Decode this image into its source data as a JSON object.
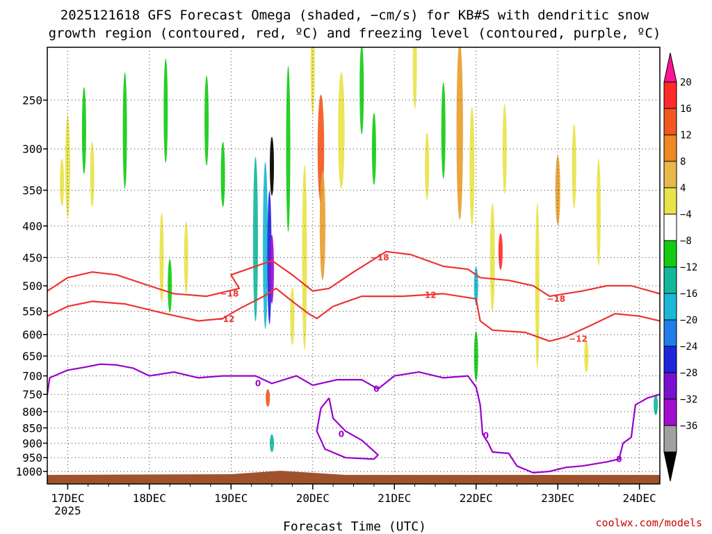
{
  "chart_data": {
    "type": "heatmap",
    "title": [
      "2025121618 GFS Forecast Omega (shaded, −cm/s) for KB#S with dendritic snow",
      "growth region (contoured, red, ºC) and freezing level (contoured, purple, ºC)"
    ],
    "xlabel": "Forecast Time (UTC)",
    "credit": "coolwx.com/models",
    "y_ticks": [
      "250",
      "300",
      "350",
      "400",
      "450",
      "500",
      "550",
      "600",
      "650",
      "700",
      "750",
      "800",
      "850",
      "900",
      "950",
      "1000"
    ],
    "y_levels_hpa": [
      250,
      300,
      350,
      400,
      450,
      500,
      550,
      600,
      650,
      700,
      750,
      800,
      850,
      900,
      950,
      1000
    ],
    "x_ticks": [
      "17DEC",
      "18DEC",
      "19DEC",
      "20DEC",
      "21DEC",
      "22DEC",
      "23DEC",
      "24DEC"
    ],
    "x_year": "2025",
    "x_range_days": [
      16.75,
      24.25
    ],
    "colorbar": {
      "tick_labels": [
        "20",
        "16",
        "12",
        "8",
        "4",
        "−4",
        "−8",
        "−12",
        "−16",
        "−20",
        "−24",
        "−28",
        "−32",
        "−36"
      ],
      "colors": [
        "#ff1493",
        "#ff2a2a",
        "#f2581f",
        "#ee8a22",
        "#e8b84a",
        "#e9e34a",
        "#ffffff",
        "#13cc13",
        "#13b89c",
        "#19b8d6",
        "#1f7ee8",
        "#1f24dd",
        "#7810d0",
        "#a00ed0",
        "#a0a0a0",
        "#000000"
      ]
    },
    "omega_blobs": [
      {
        "t": 17.0,
        "p": 320,
        "dt": 0.06,
        "dp": 120,
        "v": 5
      },
      {
        "t": 16.93,
        "p": 340,
        "dt": 0.04,
        "dp": 60,
        "v": 7
      },
      {
        "t": 17.2,
        "p": 280,
        "dt": 0.05,
        "dp": 90,
        "v": -5
      },
      {
        "t": 17.3,
        "p": 330,
        "dt": 0.04,
        "dp": 80,
        "v": 5
      },
      {
        "t": 17.7,
        "p": 280,
        "dt": 0.05,
        "dp": 120,
        "v": -5
      },
      {
        "t": 18.2,
        "p": 260,
        "dt": 0.05,
        "dp": 100,
        "v": -5
      },
      {
        "t": 18.15,
        "p": 450,
        "dt": 0.04,
        "dp": 150,
        "v": 5
      },
      {
        "t": 18.25,
        "p": 500,
        "dt": 0.05,
        "dp": 100,
        "v": -5
      },
      {
        "t": 18.45,
        "p": 450,
        "dt": 0.04,
        "dp": 120,
        "v": 5
      },
      {
        "t": 18.7,
        "p": 270,
        "dt": 0.04,
        "dp": 90,
        "v": -5
      },
      {
        "t": 18.9,
        "p": 330,
        "dt": 0.04,
        "dp": 80,
        "v": -5
      },
      {
        "t": 19.3,
        "p": 420,
        "dt": 0.06,
        "dp": 250,
        "v": -8
      },
      {
        "t": 19.42,
        "p": 430,
        "dt": 0.06,
        "dp": 260,
        "v": -12
      },
      {
        "t": 19.47,
        "p": 450,
        "dt": 0.05,
        "dp": 220,
        "v": -20
      },
      {
        "t": 19.5,
        "p": 470,
        "dt": 0.04,
        "dp": 120,
        "v": -28
      },
      {
        "t": 19.5,
        "p": 320,
        "dt": 0.02,
        "dp": 70,
        "v": -36
      },
      {
        "t": 19.45,
        "p": 760,
        "dt": 0.04,
        "dp": 50,
        "v": 12
      },
      {
        "t": 19.5,
        "p": 900,
        "dt": 0.03,
        "dp": 60,
        "v": -8
      },
      {
        "t": 19.7,
        "p": 300,
        "dt": 0.05,
        "dp": 180,
        "v": -5
      },
      {
        "t": 19.75,
        "p": 560,
        "dt": 0.05,
        "dp": 120,
        "v": 5
      },
      {
        "t": 19.9,
        "p": 450,
        "dt": 0.06,
        "dp": 300,
        "v": 5
      },
      {
        "t": 20.1,
        "p": 300,
        "dt": 0.08,
        "dp": 120,
        "v": 12
      },
      {
        "t": 20.12,
        "p": 400,
        "dt": 0.07,
        "dp": 160,
        "v": 8
      },
      {
        "t": 20.0,
        "p": 220,
        "dt": 0.05,
        "dp": 80,
        "v": 5
      },
      {
        "t": 20.35,
        "p": 280,
        "dt": 0.08,
        "dp": 120,
        "v": 5
      },
      {
        "t": 20.6,
        "p": 240,
        "dt": 0.05,
        "dp": 80,
        "v": -5
      },
      {
        "t": 20.75,
        "p": 300,
        "dt": 0.05,
        "dp": 80,
        "v": -5
      },
      {
        "t": 21.25,
        "p": 220,
        "dt": 0.04,
        "dp": 70,
        "v": 5
      },
      {
        "t": 21.4,
        "p": 320,
        "dt": 0.04,
        "dp": 80,
        "v": 5
      },
      {
        "t": 21.6,
        "p": 280,
        "dt": 0.05,
        "dp": 100,
        "v": -5
      },
      {
        "t": 21.8,
        "p": 280,
        "dt": 0.08,
        "dp": 180,
        "v": 8
      },
      {
        "t": 21.95,
        "p": 320,
        "dt": 0.06,
        "dp": 140,
        "v": 5
      },
      {
        "t": 22.0,
        "p": 500,
        "dt": 0.04,
        "dp": 70,
        "v": -12
      },
      {
        "t": 22.0,
        "p": 650,
        "dt": 0.05,
        "dp": 120,
        "v": -5
      },
      {
        "t": 22.2,
        "p": 450,
        "dt": 0.06,
        "dp": 180,
        "v": 5
      },
      {
        "t": 22.3,
        "p": 440,
        "dt": 0.05,
        "dp": 60,
        "v": 16
      },
      {
        "t": 22.35,
        "p": 300,
        "dt": 0.05,
        "dp": 100,
        "v": 5
      },
      {
        "t": 22.75,
        "p": 500,
        "dt": 0.05,
        "dp": 300,
        "v": 5
      },
      {
        "t": 23.0,
        "p": 350,
        "dt": 0.06,
        "dp": 90,
        "v": 8
      },
      {
        "t": 23.2,
        "p": 320,
        "dt": 0.05,
        "dp": 100,
        "v": 5
      },
      {
        "t": 23.5,
        "p": 380,
        "dt": 0.05,
        "dp": 150,
        "v": 5
      },
      {
        "t": 23.35,
        "p": 650,
        "dt": 0.04,
        "dp": 80,
        "v": 5
      },
      {
        "t": 24.2,
        "p": 780,
        "dt": 0.03,
        "dp": 60,
        "v": -8
      }
    ],
    "dgz_minus12": {
      "label": "−12",
      "points": [
        [
          16.75,
          560
        ],
        [
          17.0,
          540
        ],
        [
          17.3,
          530
        ],
        [
          17.7,
          535
        ],
        [
          18.2,
          555
        ],
        [
          18.6,
          570
        ],
        [
          18.9,
          565
        ],
        [
          19.1,
          545
        ],
        [
          19.4,
          520
        ],
        [
          19.55,
          505
        ],
        [
          19.75,
          530
        ],
        [
          19.95,
          555
        ],
        [
          20.05,
          565
        ],
        [
          20.25,
          540
        ],
        [
          20.6,
          520
        ],
        [
          21.1,
          520
        ],
        [
          21.6,
          515
        ],
        [
          22.0,
          525
        ],
        [
          22.05,
          570
        ],
        [
          22.2,
          590
        ],
        [
          22.6,
          595
        ],
        [
          22.9,
          615
        ],
        [
          23.1,
          605
        ],
        [
          23.4,
          580
        ],
        [
          23.7,
          555
        ],
        [
          24.0,
          560
        ],
        [
          24.25,
          570
        ]
      ],
      "labels_at": [
        [
          18.93,
          566
        ],
        [
          21.4,
          518
        ],
        [
          23.25,
          610
        ]
      ]
    },
    "dgz_minus18": {
      "label": "−18",
      "points": [
        [
          16.75,
          510
        ],
        [
          17.0,
          485
        ],
        [
          17.3,
          475
        ],
        [
          17.6,
          480
        ],
        [
          18.0,
          500
        ],
        [
          18.3,
          515
        ],
        [
          18.7,
          520
        ],
        [
          19.1,
          505
        ],
        [
          19.0,
          480
        ],
        [
          19.4,
          460
        ],
        [
          19.5,
          455
        ],
        [
          19.75,
          480
        ],
        [
          20.0,
          510
        ],
        [
          20.2,
          505
        ],
        [
          20.5,
          475
        ],
        [
          20.9,
          440
        ],
        [
          21.2,
          445
        ],
        [
          21.6,
          465
        ],
        [
          21.9,
          470
        ],
        [
          22.05,
          485
        ],
        [
          22.4,
          490
        ],
        [
          22.7,
          500
        ],
        [
          22.9,
          520
        ],
        [
          23.3,
          510
        ],
        [
          23.6,
          500
        ],
        [
          23.9,
          500
        ],
        [
          24.25,
          515
        ]
      ],
      "labels_at": [
        [
          18.98,
          515
        ],
        [
          20.82,
          450
        ],
        [
          22.98,
          525
        ]
      ]
    },
    "freezing_level_0C": {
      "label": "0",
      "points": [
        [
          16.75,
          750
        ],
        [
          16.78,
          705
        ],
        [
          17.0,
          685
        ],
        [
          17.2,
          678
        ],
        [
          17.4,
          670
        ],
        [
          17.6,
          672
        ],
        [
          17.8,
          680
        ],
        [
          18.0,
          700
        ],
        [
          18.3,
          690
        ],
        [
          18.6,
          705
        ],
        [
          18.9,
          700
        ],
        [
          19.3,
          700
        ],
        [
          19.5,
          720
        ],
        [
          19.8,
          700
        ],
        [
          20.0,
          725
        ],
        [
          20.3,
          710
        ],
        [
          20.6,
          710
        ],
        [
          20.8,
          735
        ],
        [
          21.0,
          700
        ],
        [
          21.3,
          690
        ],
        [
          21.6,
          705
        ],
        [
          21.9,
          700
        ],
        [
          22.0,
          730
        ],
        [
          22.05,
          780
        ],
        [
          22.08,
          870
        ],
        [
          22.15,
          900
        ],
        [
          22.2,
          930
        ],
        [
          22.4,
          935
        ],
        [
          22.5,
          980
        ],
        [
          22.7,
          1005
        ],
        [
          22.9,
          1000
        ],
        [
          23.1,
          985
        ],
        [
          23.3,
          980
        ],
        [
          23.6,
          965
        ],
        [
          23.75,
          955
        ],
        [
          23.8,
          900
        ],
        [
          23.9,
          880
        ],
        [
          23.95,
          780
        ],
        [
          24.1,
          760
        ],
        [
          24.25,
          750
        ]
      ],
      "closed": [
        [
          20.2,
          760
        ],
        [
          20.1,
          790
        ],
        [
          20.05,
          860
        ],
        [
          20.15,
          920
        ],
        [
          20.4,
          950
        ],
        [
          20.75,
          955
        ],
        [
          20.8,
          940
        ],
        [
          20.6,
          890
        ],
        [
          20.4,
          860
        ],
        [
          20.25,
          820
        ],
        [
          20.2,
          760
        ]
      ],
      "labels_at": [
        [
          19.33,
          720
        ],
        [
          20.78,
          735
        ],
        [
          22.12,
          875
        ],
        [
          23.75,
          955
        ],
        [
          20.35,
          870
        ]
      ]
    }
  },
  "colors": {
    "dgz": "#ee3333",
    "freezing": "#9900cc",
    "terrain": "#a0522d",
    "credit": "#cc0000"
  }
}
